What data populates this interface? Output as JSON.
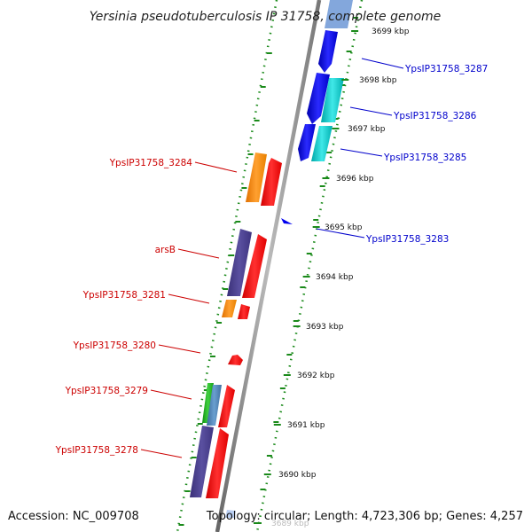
{
  "title": "Yersinia pseudotuberculosis IP 31758, complete genome",
  "footer": {
    "accession": "Accession: NC_009708",
    "topology": "Topology: circular; Length: 4,723,306 bp; Genes: 4,257"
  },
  "ticks": [
    {
      "label": "3699 kbp",
      "ref": "3699"
    },
    {
      "label": "3698 kbp",
      "ref": "3698"
    },
    {
      "label": "3697 kbp",
      "ref": "3697"
    },
    {
      "label": "3696 kbp",
      "ref": "3696"
    },
    {
      "label": "3695 kbp",
      "ref": "3695"
    },
    {
      "label": "3694 kbp",
      "ref": "3694"
    },
    {
      "label": "3693 kbp",
      "ref": "3693"
    },
    {
      "label": "3692 kbp",
      "ref": "3692"
    },
    {
      "label": "3691 kbp",
      "ref": "3691"
    },
    {
      "label": "3690 kbp",
      "ref": "3690"
    },
    {
      "label": "3689 kbp",
      "ref": "3689"
    }
  ],
  "gene_labels_forward": [
    {
      "name": "YpsIP31758_3287"
    },
    {
      "name": "YpsIP31758_3286"
    },
    {
      "name": "YpsIP31758_3285"
    },
    {
      "name": "YpsIP31758_3283"
    }
  ],
  "gene_labels_reverse": [
    {
      "name": "YpsIP31758_3284"
    },
    {
      "name": "arsB"
    },
    {
      "name": "YpsIP31758_3281"
    },
    {
      "name": "YpsIP31758_3280"
    },
    {
      "name": "YpsIP31758_3279"
    },
    {
      "name": "YpsIP31758_3278"
    }
  ],
  "colors": {
    "forward_label": "#0000cc",
    "reverse_label": "#cc0000",
    "backbone": "#888888",
    "gc_dots": "#1a8a1a",
    "cds_red": "#ff0000",
    "cds_blue": "#0000ee",
    "cds_cyan": "#00cccc",
    "cds_orange": "#ff8800",
    "cds_purple": "#4a3f8f",
    "cds_green": "#22aa22",
    "cds_steel": "#4a7fb5"
  }
}
